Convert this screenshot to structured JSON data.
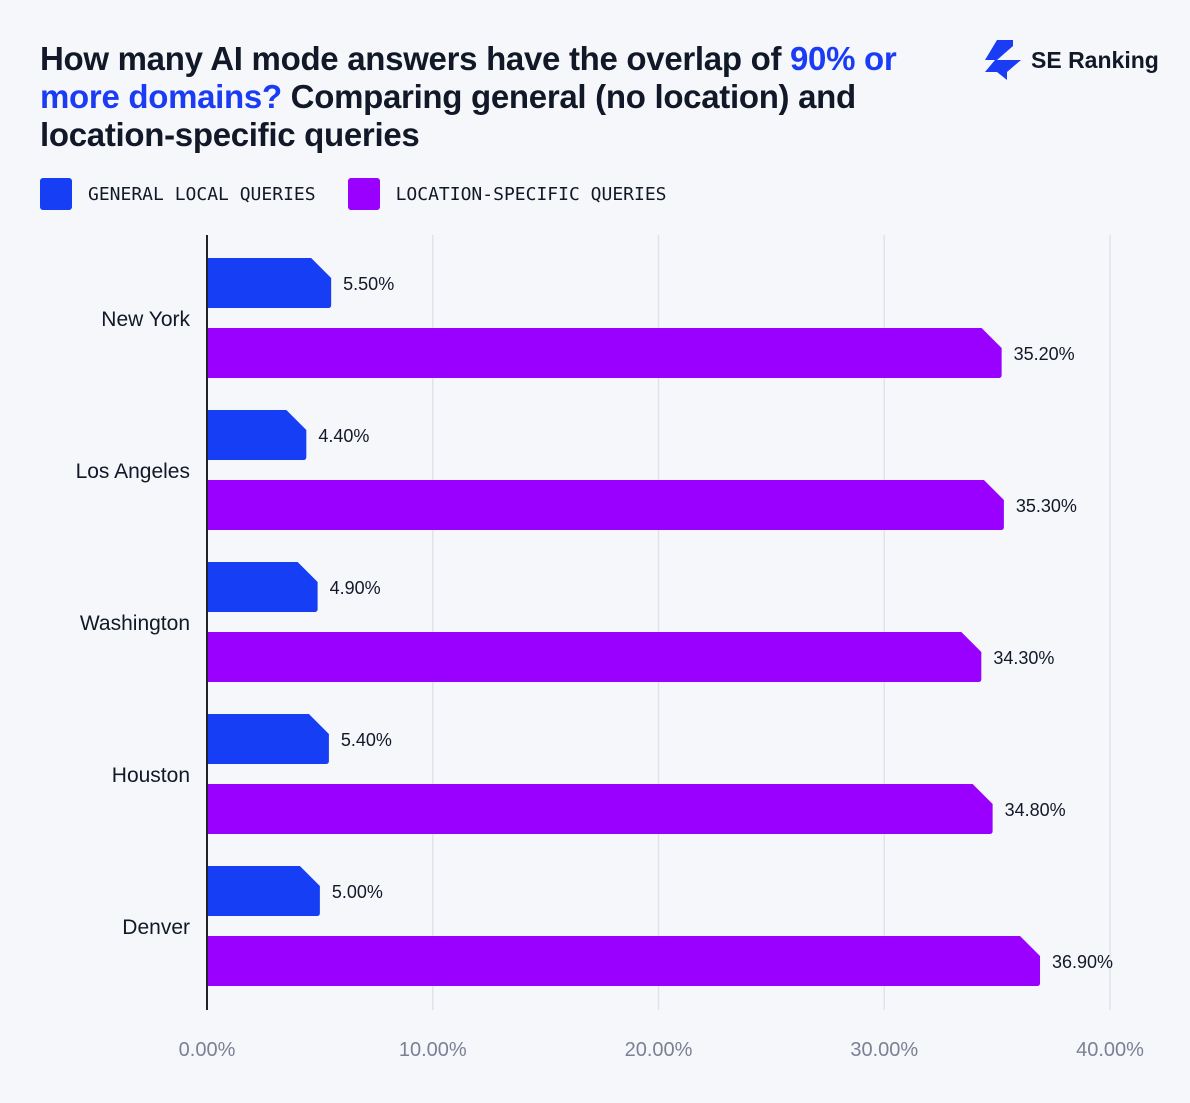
{
  "title": {
    "part1": "How many AI mode answers have the overlap of ",
    "highlight": "90% or more domains?",
    "part2": " Comparing general (no location) and location-specific queries"
  },
  "logo": {
    "text": "SE Ranking",
    "color": "#1a3cf5"
  },
  "chart_data": {
    "type": "bar",
    "orientation": "horizontal",
    "categories": [
      "New York",
      "Los Angeles",
      "Washington",
      "Houston",
      "Denver"
    ],
    "series": [
      {
        "name": "GENERAL LOCAL QUERIES",
        "color": "#153ef5",
        "values": [
          5.5,
          4.4,
          4.9,
          5.4,
          5.0
        ],
        "labels": [
          "5.50%",
          "4.40%",
          "4.90%",
          "5.40%",
          "5.00%"
        ]
      },
      {
        "name": "LOCATION-SPECIFIC QUERIES",
        "color": "#9900ff",
        "values": [
          35.2,
          35.3,
          34.3,
          34.8,
          36.9
        ],
        "labels": [
          "35.20%",
          "35.30%",
          "34.30%",
          "34.80%",
          "36.90%"
        ]
      }
    ],
    "xlim": [
      0,
      40
    ],
    "xticks": [
      0,
      10,
      20,
      30,
      40
    ],
    "xtick_labels": [
      "0.00%",
      "10.00%",
      "20.00%",
      "30.00%",
      "40.00%"
    ],
    "grid": "vertical",
    "legend": "top-left"
  }
}
